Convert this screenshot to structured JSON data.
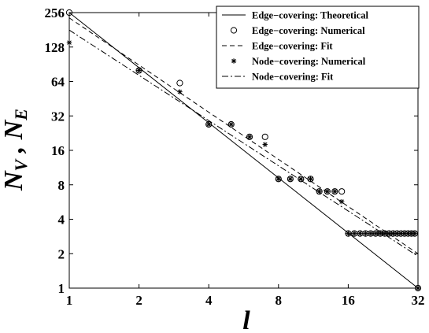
{
  "chart_data": {
    "type": "scatter",
    "x_scale": "log2",
    "y_scale": "log2",
    "xlim": [
      1,
      32
    ],
    "ylim": [
      1,
      256
    ],
    "x_ticks": [
      "1",
      "2",
      "4",
      "8",
      "16",
      "32"
    ],
    "y_ticks": [
      "1",
      "2",
      "4",
      "8",
      "16",
      "32",
      "64",
      "128",
      "256"
    ],
    "xlabel": "l",
    "ylabel_main": "N",
    "ylabel_sub1": "V",
    "ylabel_sep": " , ",
    "ylabel_main2": "N",
    "ylabel_sub2": "E",
    "grid": false,
    "legend_position": "top-right",
    "series": [
      {
        "name": "Edge−covering: Theoretical",
        "style": "solid-line",
        "x": [
          1,
          32
        ],
        "y": [
          256,
          1
        ]
      },
      {
        "name": "Edge−covering: Numerical",
        "style": "open-circle",
        "x": [
          1,
          2,
          3,
          4,
          5,
          6,
          7,
          8,
          9,
          10,
          11,
          12,
          13,
          14,
          15,
          16,
          17,
          18,
          19,
          20,
          21,
          22,
          23,
          24,
          25,
          26,
          27,
          28,
          29,
          30,
          31,
          32
        ],
        "y": [
          256,
          80,
          62,
          27,
          27,
          21,
          21,
          9,
          9,
          9,
          9,
          7,
          7,
          7,
          7,
          3,
          3,
          3,
          3,
          3,
          3,
          3,
          3,
          3,
          3,
          3,
          3,
          3,
          3,
          3,
          3,
          1
        ]
      },
      {
        "name": "Edge−covering: Fit",
        "style": "dashed-line",
        "x": [
          1,
          32
        ],
        "y": [
          230,
          2
        ]
      },
      {
        "name": "Node−covering: Numerical",
        "style": "star",
        "x": [
          1,
          2,
          3,
          4,
          5,
          6,
          7,
          8,
          9,
          10,
          11,
          12,
          13,
          14,
          15,
          16,
          17,
          18,
          19,
          20,
          21,
          22,
          23,
          24,
          25,
          26,
          27,
          28,
          29,
          30,
          31,
          32
        ],
        "y": [
          140,
          80,
          52,
          27,
          27,
          21,
          18,
          9,
          9,
          9,
          9,
          7,
          7,
          7,
          5.7,
          3,
          3,
          3,
          3,
          3,
          3,
          3,
          3,
          3,
          3,
          3,
          3,
          3,
          3,
          3,
          3,
          1
        ]
      },
      {
        "name": "Node−covering: Fit",
        "style": "dashdot-line",
        "x": [
          1,
          32
        ],
        "y": [
          180,
          1.9
        ]
      }
    ]
  }
}
